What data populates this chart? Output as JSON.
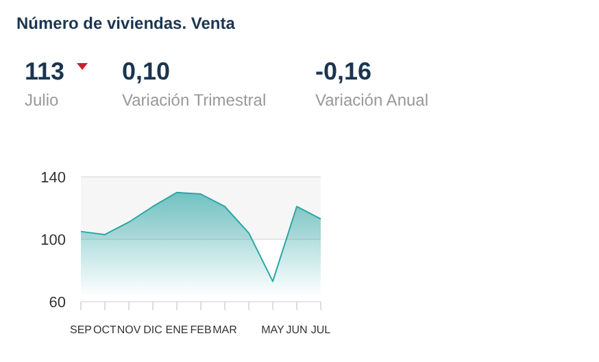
{
  "chart_data": {
    "type": "area",
    "title": "Número de viviendas. Venta",
    "annotations": [
      "113",
      "Julio",
      "0,10",
      "Variación Trimestral",
      "-0,16",
      "Variación Anual"
    ],
    "categories": [
      "SEP",
      "OCT",
      "NOV",
      "DIC",
      "ENE",
      "FEB",
      "MAR",
      null,
      "MAY",
      "JUN",
      "JUL"
    ],
    "series": [
      {
        "color": "#2aa5a5",
        "values": [
          105,
          103,
          111,
          121,
          130,
          129,
          121,
          104,
          73,
          121,
          113
        ]
      }
    ],
    "ylim": [
      60,
      140
    ],
    "yticks": [
      60,
      100,
      140
    ],
    "grid": "y",
    "bands": [
      {
        "axis": "y",
        "from": 100,
        "to": 140,
        "color": "#f6f6f6"
      }
    ]
  }
}
